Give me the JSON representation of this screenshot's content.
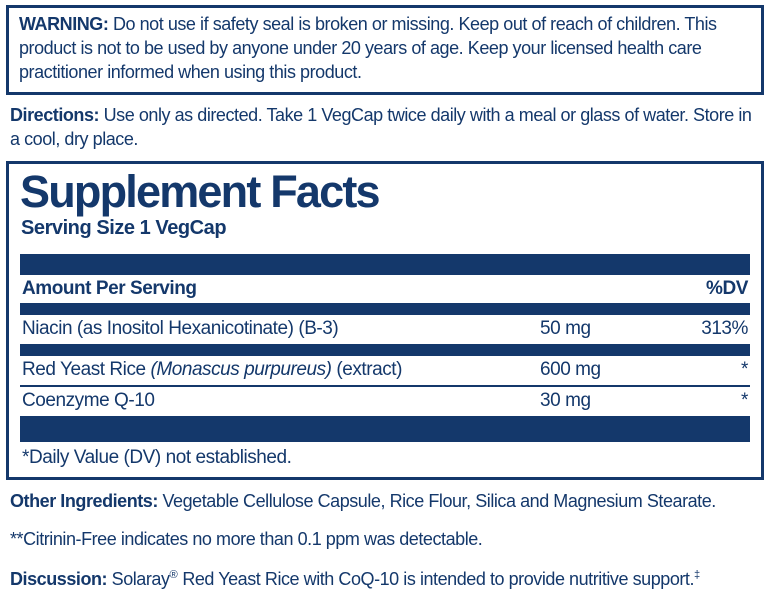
{
  "colors": {
    "navy": "#14386B",
    "background": "#ffffff"
  },
  "warning": {
    "label": "WARNING:",
    "text": " Do not use if safety seal is broken or missing. Keep out of reach of children. This product is not to be used by anyone under 20 years of age. Keep your licensed health care practitioner informed when using this product."
  },
  "directions": {
    "label": "Directions:",
    "text": " Use only as directed. Take 1 VegCap twice daily with a meal or glass of water. Store in a cool, dry place."
  },
  "supplement_facts": {
    "title": "Supplement Facts",
    "serving_size": "Serving Size 1 VegCap",
    "header": {
      "amount_per_serving": "Amount Per Serving",
      "dv": "%DV"
    },
    "rows": [
      {
        "name_pre": "Niacin (as Inositol Hexanicotinate) (B-3)",
        "name_italic": "",
        "name_post": "",
        "amount": "50 mg",
        "dv": "313%"
      },
      {
        "name_pre": "Red Yeast Rice ",
        "name_italic": "(Monascus purpureus)",
        "name_post": " (extract)",
        "amount": "600 mg",
        "dv": "*"
      },
      {
        "name_pre": "Coenzyme Q-10",
        "name_italic": "",
        "name_post": "",
        "amount": "30 mg",
        "dv": "*"
      }
    ],
    "footnote": "*Daily Value (DV) not established."
  },
  "other_ingredients": {
    "label": "Other Ingredients:",
    "text": " Vegetable Cellulose Capsule, Rice Flour, Silica and Magnesium Stearate."
  },
  "citrinin_note": "**Citrinin-Free indicates no more than 0.1 ppm was detectable.",
  "discussion": {
    "label": "Discussion:",
    "pre_brand": " ",
    "brand": "Solaray",
    "reg_mark": "®",
    "text": " Red Yeast Rice with CoQ-10 is intended to provide nutritive support.",
    "dagger": "‡"
  }
}
